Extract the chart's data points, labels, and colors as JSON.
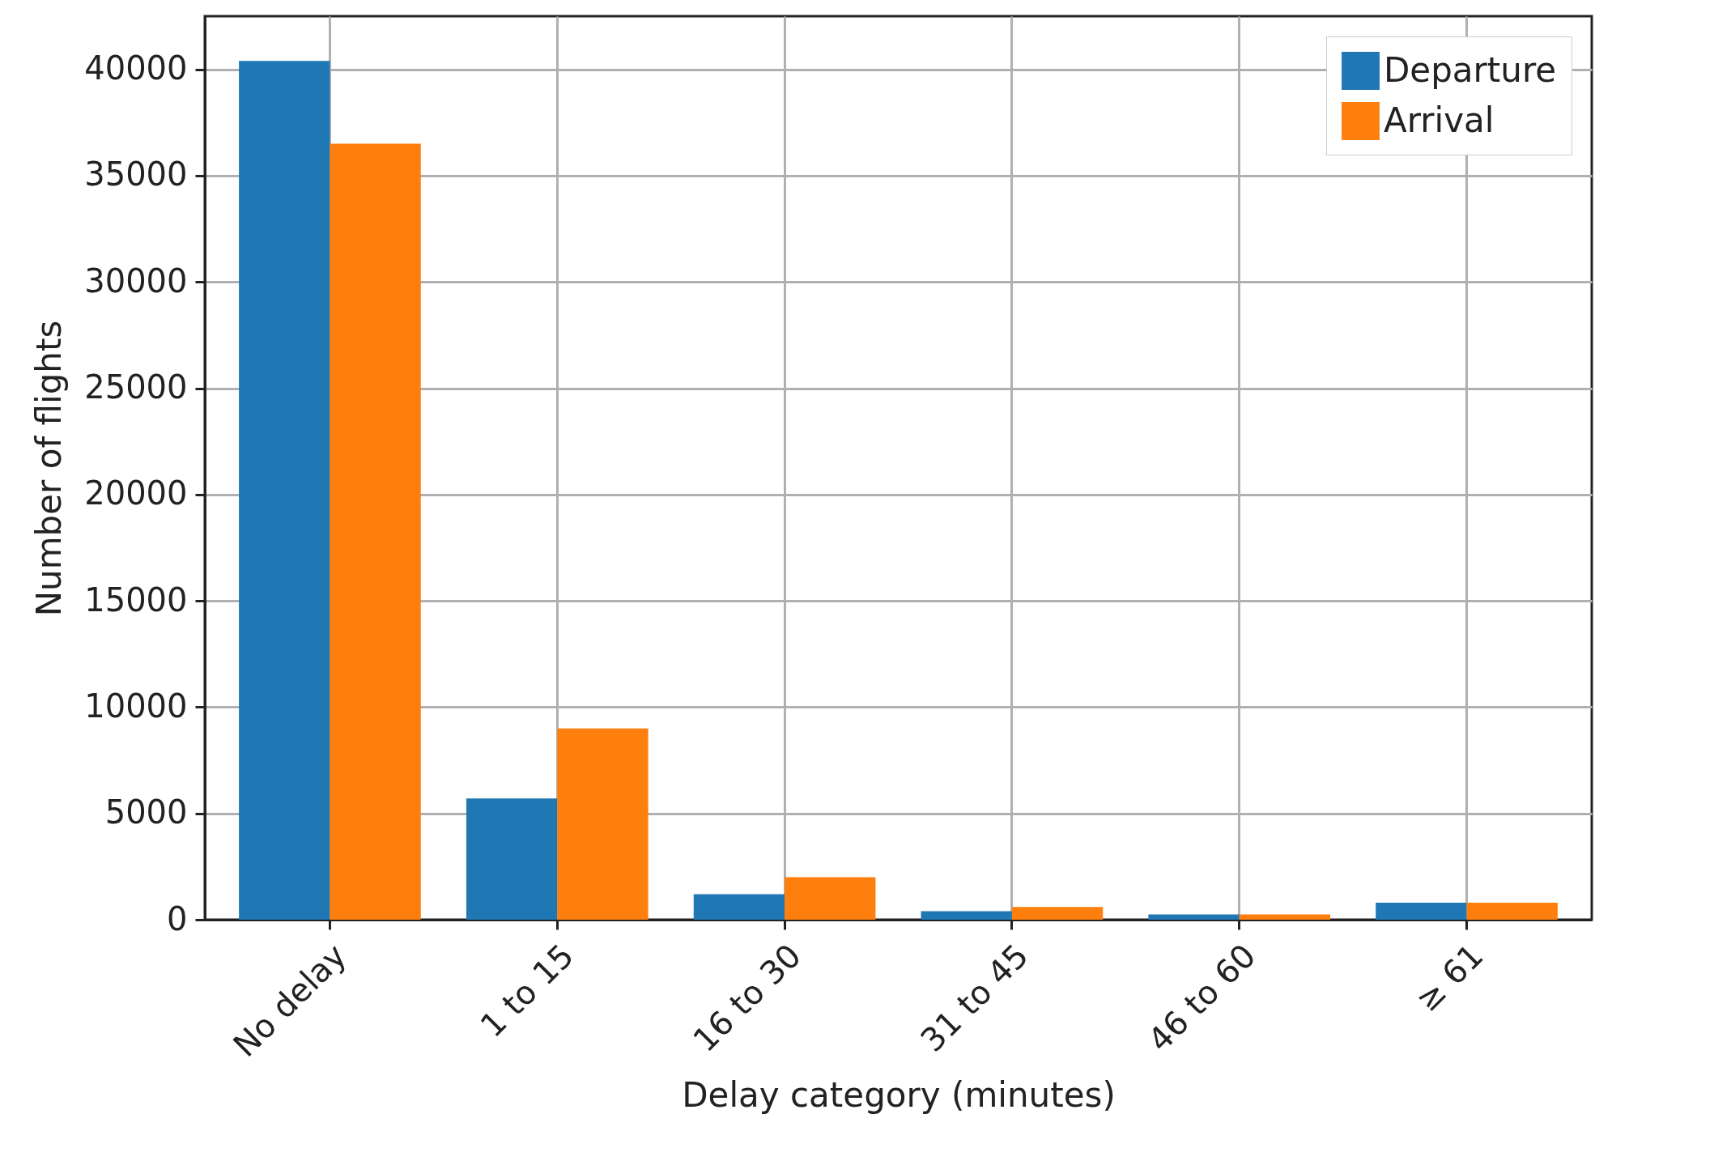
{
  "chart_data": {
    "type": "bar",
    "xlabel": "Delay category (minutes)",
    "ylabel": "Number of flights",
    "categories": [
      "No delay",
      "1 to 15",
      "16 to 30",
      "31 to 45",
      "46 to 60",
      "≥ 61"
    ],
    "series": [
      {
        "name": "Departure",
        "color": "#1f77b4",
        "values": [
          40400,
          5700,
          1200,
          400,
          250,
          800
        ]
      },
      {
        "name": "Arrival",
        "color": "#ff7f0e",
        "values": [
          36500,
          9000,
          2000,
          600,
          250,
          800
        ]
      }
    ],
    "ylim": [
      0,
      42500
    ],
    "yticks": [
      0,
      5000,
      10000,
      15000,
      20000,
      25000,
      30000,
      35000,
      40000
    ],
    "grid": true,
    "legend": "top right"
  }
}
